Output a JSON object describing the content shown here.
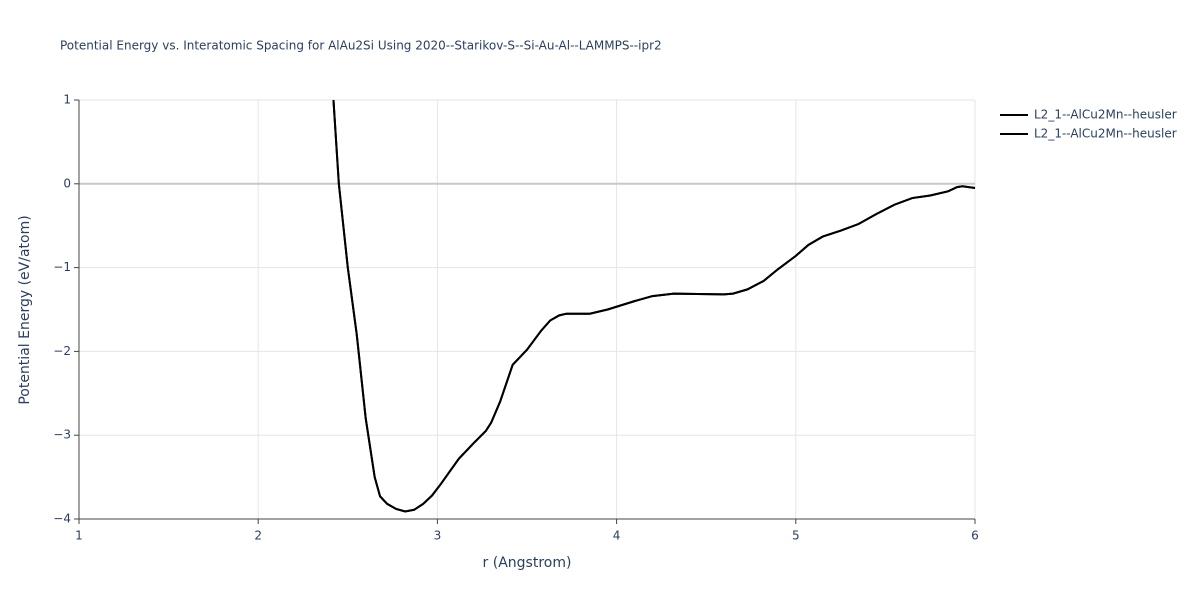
{
  "chart_data": {
    "type": "line",
    "title": "Potential Energy vs. Interatomic Spacing for AlAu2Si Using 2020--Starikov-S--Si-Au-Al--LAMMPS--ipr2",
    "x_label": "r (Angstrom)",
    "y_label": "Potential Energy (eV/atom)",
    "x": [
      2.42,
      2.45,
      2.5,
      2.55,
      2.6,
      2.65,
      2.68,
      2.72,
      2.77,
      2.82,
      2.87,
      2.92,
      2.97,
      3.02,
      3.07,
      3.12,
      3.2,
      3.27,
      3.3,
      3.35,
      3.42,
      3.5,
      3.58,
      3.63,
      3.68,
      3.72,
      3.85,
      3.95,
      4.1,
      4.2,
      4.32,
      4.45,
      4.6,
      4.65,
      4.73,
      4.82,
      4.9,
      5.0,
      5.07,
      5.15,
      5.25,
      5.35,
      5.45,
      5.55,
      5.65,
      5.75,
      5.85,
      5.9,
      5.93,
      6.0
    ],
    "series": [
      {
        "name": "L2_1--AlCu2Mn--heusler",
        "color": "#000000",
        "values": [
          1.0,
          0.0,
          -1.0,
          -1.8,
          -2.8,
          -3.5,
          -3.73,
          -3.82,
          -3.88,
          -3.91,
          -3.89,
          -3.82,
          -3.72,
          -3.58,
          -3.43,
          -3.28,
          -3.1,
          -2.95,
          -2.85,
          -2.6,
          -2.16,
          -1.98,
          -1.75,
          -1.63,
          -1.57,
          -1.55,
          -1.55,
          -1.5,
          -1.4,
          -1.34,
          -1.31,
          -1.315,
          -1.32,
          -1.31,
          -1.26,
          -1.16,
          -1.02,
          -0.86,
          -0.73,
          -0.63,
          -0.56,
          -0.48,
          -0.36,
          -0.25,
          -0.17,
          -0.14,
          -0.09,
          -0.04,
          -0.03,
          -0.05
        ]
      },
      {
        "name": "L2_1--AlCu2Mn--heusler",
        "color": "#000000",
        "values": [
          1.0,
          0.0,
          -1.0,
          -1.8,
          -2.8,
          -3.5,
          -3.73,
          -3.82,
          -3.88,
          -3.91,
          -3.89,
          -3.82,
          -3.72,
          -3.58,
          -3.43,
          -3.28,
          -3.1,
          -2.95,
          -2.85,
          -2.6,
          -2.16,
          -1.98,
          -1.75,
          -1.63,
          -1.57,
          -1.55,
          -1.55,
          -1.5,
          -1.4,
          -1.34,
          -1.31,
          -1.315,
          -1.32,
          -1.31,
          -1.26,
          -1.16,
          -1.02,
          -0.86,
          -0.73,
          -0.63,
          -0.56,
          -0.48,
          -0.36,
          -0.25,
          -0.17,
          -0.14,
          -0.09,
          -0.04,
          -0.03,
          -0.05
        ]
      }
    ],
    "xlim": [
      1,
      6
    ],
    "xticks": [
      1,
      2,
      3,
      4,
      5,
      6
    ],
    "ylim": [
      -4,
      1
    ],
    "yticks": [
      {
        "value": -4,
        "label": "−4"
      },
      {
        "value": -3,
        "label": "−3"
      },
      {
        "value": -2,
        "label": "−2"
      },
      {
        "value": -1,
        "label": "−1"
      },
      0,
      1
    ],
    "grid": true,
    "legend": "right"
  }
}
